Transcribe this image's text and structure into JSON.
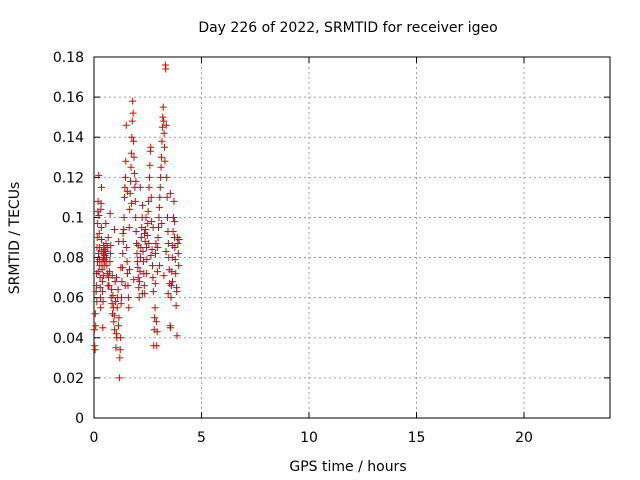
{
  "chart_data": {
    "type": "scatter",
    "title": "Day 226 of 2022, SRMTID for receiver igeo",
    "xlabel": "GPS time / hours",
    "ylabel": "SRMTID / TECUs",
    "xlim": [
      0,
      24
    ],
    "ylim": [
      0,
      0.18
    ],
    "xticks": [
      0,
      5,
      10,
      15,
      20
    ],
    "yticks": [
      0,
      0.02,
      0.04,
      0.06,
      0.08,
      0.1,
      0.12,
      0.14,
      0.16,
      0.18
    ],
    "xtick_labels": [
      "0",
      "5",
      "10",
      "15",
      "20"
    ],
    "ytick_labels": [
      "0",
      "0.02",
      "0.04",
      "0.06",
      "0.08",
      "0.1",
      "0.12",
      "0.14",
      "0.16",
      "0.18"
    ],
    "grid": true,
    "marker": "+",
    "color": "#e00000",
    "series": [
      {
        "name": "SRMTID",
        "points": [
          [
            0.02,
            0.044
          ],
          [
            0.03,
            0.036
          ],
          [
            0.05,
            0.034
          ],
          [
            0.06,
            0.052
          ],
          [
            0.08,
            0.046
          ],
          [
            0.1,
            0.063
          ],
          [
            0.11,
            0.066
          ],
          [
            0.12,
            0.072
          ],
          [
            0.13,
            0.058
          ],
          [
            0.14,
            0.085
          ],
          [
            0.15,
            0.09
          ],
          [
            0.16,
            0.078
          ],
          [
            0.17,
            0.097
          ],
          [
            0.18,
            0.103
          ],
          [
            0.19,
            0.108
          ],
          [
            0.2,
            0.073
          ],
          [
            0.21,
            0.082
          ],
          [
            0.22,
            0.121
          ],
          [
            0.23,
            0.101
          ],
          [
            0.24,
            0.092
          ],
          [
            0.25,
            0.085
          ],
          [
            0.26,
            0.079
          ],
          [
            0.27,
            0.076
          ],
          [
            0.28,
            0.07
          ],
          [
            0.29,
            0.065
          ],
          [
            0.3,
            0.06
          ],
          [
            0.31,
            0.055
          ],
          [
            0.32,
            0.104
          ],
          [
            0.33,
            0.107
          ],
          [
            0.34,
            0.095
          ],
          [
            0.35,
            0.089
          ],
          [
            0.36,
            0.083
          ],
          [
            0.37,
            0.078
          ],
          [
            0.38,
            0.074
          ],
          [
            0.39,
            0.068
          ],
          [
            0.4,
            0.063
          ],
          [
            0.41,
            0.045
          ],
          [
            0.42,
            0.058
          ],
          [
            0.43,
            0.08
          ],
          [
            0.44,
            0.082
          ],
          [
            0.45,
            0.086
          ],
          [
            0.46,
            0.079
          ],
          [
            0.47,
            0.076
          ],
          [
            0.48,
            0.084
          ],
          [
            0.5,
            0.081
          ],
          [
            0.52,
            0.078
          ],
          [
            0.54,
            0.083
          ],
          [
            0.56,
            0.087
          ],
          [
            0.58,
            0.08
          ],
          [
            0.6,
            0.076
          ],
          [
            0.62,
            0.072
          ],
          [
            0.64,
            0.085
          ],
          [
            0.66,
            0.09
          ],
          [
            0.68,
            0.07
          ],
          [
            0.7,
            0.066
          ],
          [
            0.72,
            0.073
          ],
          [
            0.74,
            0.078
          ],
          [
            0.76,
            0.082
          ],
          [
            0.78,
            0.086
          ],
          [
            0.8,
            0.06
          ],
          [
            0.82,
            0.064
          ],
          [
            0.84,
            0.057
          ],
          [
            0.86,
            0.052
          ],
          [
            0.88,
            0.061
          ],
          [
            0.9,
            0.055
          ],
          [
            0.92,
            0.048
          ],
          [
            0.94,
            0.051
          ],
          [
            0.96,
            0.044
          ],
          [
            0.98,
            0.068
          ],
          [
            1.0,
            0.058
          ],
          [
            1.02,
            0.035
          ],
          [
            1.04,
            0.042
          ],
          [
            1.06,
            0.04
          ],
          [
            1.08,
            0.055
          ],
          [
            1.1,
            0.06
          ],
          [
            1.12,
            0.064
          ],
          [
            1.14,
            0.046
          ],
          [
            1.16,
            0.05
          ],
          [
            1.18,
            0.02
          ],
          [
            1.2,
            0.03
          ],
          [
            1.22,
            0.034
          ],
          [
            1.24,
            0.04
          ],
          [
            1.26,
            0.057
          ],
          [
            1.28,
            0.06
          ],
          [
            1.3,
            0.068
          ],
          [
            1.32,
            0.075
          ],
          [
            1.34,
            0.082
          ],
          [
            1.36,
            0.088
          ],
          [
            1.38,
            0.094
          ],
          [
            1.4,
            0.1
          ],
          [
            1.42,
            0.11
          ],
          [
            1.44,
            0.115
          ],
          [
            1.46,
            0.12
          ],
          [
            1.48,
            0.128
          ],
          [
            1.5,
            0.146
          ],
          [
            1.52,
            0.085
          ],
          [
            1.54,
            0.078
          ],
          [
            1.56,
            0.072
          ],
          [
            1.58,
            0.066
          ],
          [
            1.6,
            0.06
          ],
          [
            1.62,
            0.055
          ],
          [
            1.64,
            0.095
          ],
          [
            1.66,
            0.104
          ],
          [
            1.68,
            0.112
          ],
          [
            1.7,
            0.118
          ],
          [
            1.72,
            0.125
          ],
          [
            1.74,
            0.132
          ],
          [
            1.76,
            0.14
          ],
          [
            1.78,
            0.148
          ],
          [
            1.8,
            0.158
          ],
          [
            1.82,
            0.152
          ],
          [
            1.84,
            0.138
          ],
          [
            1.86,
            0.13
          ],
          [
            1.88,
            0.122
          ],
          [
            1.9,
            0.115
          ],
          [
            1.92,
            0.108
          ],
          [
            1.94,
            0.1
          ],
          [
            1.96,
            0.093
          ],
          [
            1.98,
            0.087
          ],
          [
            2.0,
            0.082
          ],
          [
            2.02,
            0.078
          ],
          [
            2.04,
            0.075
          ],
          [
            2.06,
            0.07
          ],
          [
            2.08,
            0.065
          ],
          [
            2.1,
            0.06
          ],
          [
            2.12,
            0.068
          ],
          [
            2.14,
            0.073
          ],
          [
            2.16,
            0.08
          ],
          [
            2.18,
            0.085
          ],
          [
            2.2,
            0.09
          ],
          [
            2.22,
            0.095
          ],
          [
            2.24,
            0.1
          ],
          [
            2.26,
            0.106
          ],
          [
            2.28,
            0.083
          ],
          [
            2.3,
            0.078
          ],
          [
            2.32,
            0.072
          ],
          [
            2.34,
            0.066
          ],
          [
            2.36,
            0.062
          ],
          [
            2.38,
            0.088
          ],
          [
            2.4,
            0.094
          ],
          [
            2.42,
            0.1
          ],
          [
            2.44,
            0.085
          ],
          [
            2.46,
            0.079
          ],
          [
            2.48,
            0.091
          ],
          [
            2.5,
            0.097
          ],
          [
            2.52,
            0.103
          ],
          [
            2.54,
            0.108
          ],
          [
            2.56,
            0.115
          ],
          [
            2.58,
            0.12
          ],
          [
            2.6,
            0.126
          ],
          [
            2.62,
            0.133
          ],
          [
            2.64,
            0.135
          ],
          [
            2.66,
            0.11
          ],
          [
            2.68,
            0.098
          ],
          [
            2.7,
            0.084
          ],
          [
            2.72,
            0.076
          ],
          [
            2.74,
            0.07
          ],
          [
            2.76,
            0.063
          ],
          [
            2.78,
            0.036
          ],
          [
            2.8,
            0.044
          ],
          [
            2.82,
            0.05
          ],
          [
            2.84,
            0.055
          ],
          [
            2.86,
            0.082
          ],
          [
            2.88,
            0.087
          ],
          [
            2.9,
            0.048
          ],
          [
            2.92,
            0.036
          ],
          [
            2.94,
            0.043
          ],
          [
            2.96,
            0.085
          ],
          [
            2.98,
            0.09
          ],
          [
            3.0,
            0.095
          ],
          [
            3.02,
            0.1
          ],
          [
            3.04,
            0.105
          ],
          [
            3.06,
            0.11
          ],
          [
            3.08,
            0.115
          ],
          [
            3.1,
            0.12
          ],
          [
            3.12,
            0.125
          ],
          [
            3.14,
            0.13
          ],
          [
            3.16,
            0.138
          ],
          [
            3.18,
            0.145
          ],
          [
            3.2,
            0.15
          ],
          [
            3.22,
            0.155
          ],
          [
            3.24,
            0.148
          ],
          [
            3.26,
            0.142
          ],
          [
            3.28,
            0.135
          ],
          [
            3.3,
            0.128
          ],
          [
            3.32,
            0.176
          ],
          [
            3.34,
            0.174
          ],
          [
            3.36,
            0.146
          ],
          [
            3.38,
            0.12
          ],
          [
            3.4,
            0.11
          ],
          [
            3.42,
            0.1
          ],
          [
            3.44,
            0.093
          ],
          [
            3.46,
            0.087
          ],
          [
            3.48,
            0.08
          ],
          [
            3.5,
            0.074
          ],
          [
            3.52,
            0.067
          ],
          [
            3.54,
            0.046
          ],
          [
            3.56,
            0.045
          ],
          [
            3.58,
            0.06
          ],
          [
            3.6,
            0.066
          ],
          [
            3.62,
            0.073
          ],
          [
            3.64,
            0.08
          ],
          [
            3.66,
            0.086
          ],
          [
            3.68,
            0.093
          ],
          [
            3.7,
            0.1
          ],
          [
            3.72,
            0.108
          ],
          [
            3.74,
            0.09
          ],
          [
            3.76,
            0.085
          ],
          [
            3.78,
            0.079
          ],
          [
            3.8,
            0.072
          ],
          [
            3.82,
            0.056
          ],
          [
            3.84,
            0.065
          ],
          [
            3.86,
            0.041
          ],
          [
            3.88,
            0.09
          ],
          [
            3.9,
            0.087
          ],
          [
            3.92,
            0.082
          ],
          [
            3.94,
            0.076
          ],
          [
            3.96,
            0.089
          ],
          [
            0.35,
            0.115
          ],
          [
            0.55,
            0.097
          ],
          [
            0.75,
            0.102
          ],
          [
            0.95,
            0.094
          ],
          [
            1.15,
            0.088
          ],
          [
            1.35,
            0.092
          ],
          [
            1.55,
            0.113
          ],
          [
            1.75,
            0.107
          ],
          [
            1.95,
            0.118
          ],
          [
            2.15,
            0.115
          ],
          [
            2.35,
            0.092
          ],
          [
            2.55,
            0.087
          ],
          [
            2.75,
            0.095
          ],
          [
            2.95,
            0.073
          ],
          [
            3.15,
            0.097
          ],
          [
            3.35,
            0.083
          ],
          [
            3.55,
            0.112
          ],
          [
            3.75,
            0.098
          ],
          [
            0.45,
            0.071
          ],
          [
            0.65,
            0.066
          ],
          [
            0.85,
            0.071
          ],
          [
            1.05,
            0.07
          ],
          [
            1.25,
            0.075
          ],
          [
            1.45,
            0.066
          ],
          [
            1.65,
            0.074
          ],
          [
            1.85,
            0.069
          ],
          [
            2.05,
            0.086
          ],
          [
            2.25,
            0.062
          ],
          [
            2.45,
            0.072
          ],
          [
            2.65,
            0.081
          ],
          [
            2.85,
            0.067
          ],
          [
            3.05,
            0.076
          ],
          [
            3.25,
            0.071
          ],
          [
            3.45,
            0.062
          ],
          [
            3.65,
            0.068
          ],
          [
            3.85,
            0.063
          ]
        ]
      }
    ]
  }
}
